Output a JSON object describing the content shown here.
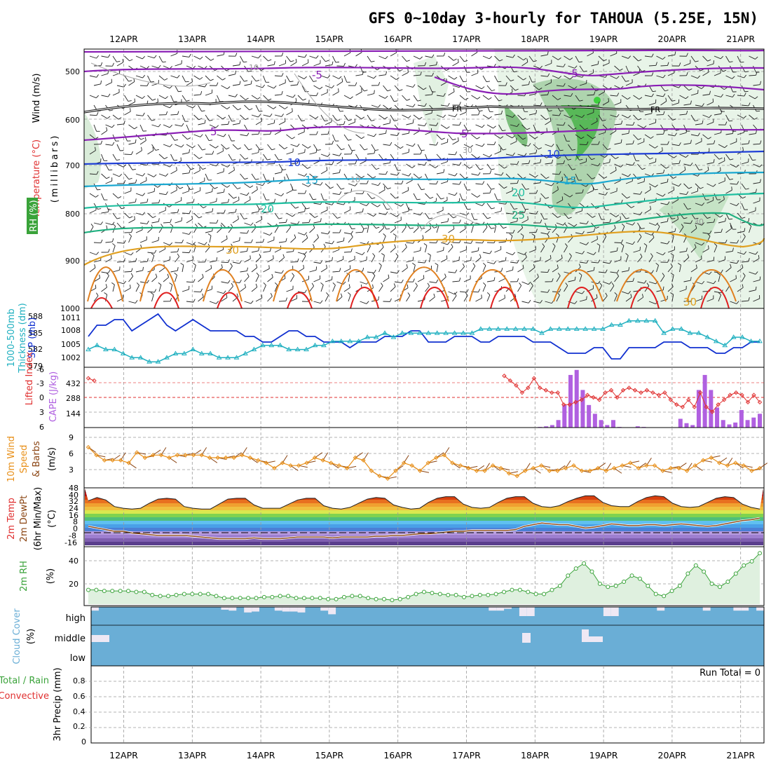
{
  "title": "GFS 0~10day 3-hourly for TAHOUA (5.25E, 15N)",
  "dates": [
    "12APR",
    "13APR",
    "14APR",
    "15APR",
    "16APR",
    "17APR",
    "18APR",
    "19APR",
    "20APR",
    "21APR"
  ],
  "colors": {
    "green": "#3aa33a",
    "red": "#e03030",
    "orange": "#e8901a",
    "purple": "#b060e0",
    "cyan": "#20b0c0",
    "blue": "#1030d0",
    "cloud": "#6aaed6",
    "brown": "#8b4513"
  },
  "panels": {
    "upper": {
      "label_wind": "Wind (m/s)",
      "label_temp": "Temperature (°C)",
      "label_rh": "RH (%)",
      "label_units": "(millibars)",
      "ticks": [
        "500",
        "600",
        "700",
        "800",
        "900",
        "1000"
      ],
      "contours": [
        "-5",
        "-5",
        "-5",
        "5",
        "5",
        "10",
        "10",
        "15",
        "15",
        "20",
        "20",
        "25",
        "30",
        "30",
        "30",
        "30",
        "10",
        "10",
        "30",
        "FR",
        "FR"
      ]
    },
    "thick": {
      "label_a": "1000-500mb",
      "label_b": "Thickness (dm)",
      "label_c": "SLP (mb)",
      "ticks_left": [
        "588",
        "585",
        "582",
        "579"
      ],
      "ticks_right": [
        "1011",
        "1008",
        "1005",
        "1002"
      ]
    },
    "cape": {
      "label_li": "Lifted Index",
      "label_cape": "CAPE (J/kg)",
      "ticks_li": [
        "-6",
        "-3",
        "0",
        "3",
        "6"
      ],
      "ticks_cape": [
        "432",
        "288",
        "144"
      ]
    },
    "wind": {
      "label_a": "10m Wind",
      "label_b": "Speed",
      "label_c": "& Barbs",
      "label_d": "(m/s)",
      "ticks": [
        "9",
        "6",
        "3"
      ]
    },
    "temp": {
      "label_a": "2m Temp",
      "label_b": "2m DewPt",
      "label_c": "(6hr Min/Max)",
      "label_d": "(°C)",
      "ticks": [
        "48",
        "40",
        "32",
        "24",
        "16",
        "8",
        "0",
        "-8",
        "-16"
      ]
    },
    "rh": {
      "label_a": "2m RH",
      "label_b": "(%)",
      "ticks": [
        "40",
        "20"
      ]
    },
    "cloud": {
      "label_a": "Cloud Cover",
      "label_b": "(%)",
      "levels": [
        "high",
        "middle",
        "low"
      ]
    },
    "precip": {
      "label_a": "Total / Rain",
      "label_b": "Convective",
      "label_c": "3hr Precip (mm)",
      "run_total": "Run Total = 0",
      "ticks": [
        "0.8",
        "0.6",
        "0.4",
        "0.2",
        "0"
      ]
    }
  },
  "chart_data": [
    {
      "type": "line",
      "name": "1000-500mb Thickness (dm)",
      "ylim": [
        579,
        588
      ],
      "values": [
        584,
        586,
        586,
        587,
        587,
        585,
        586,
        587,
        588,
        586,
        585,
        586,
        587,
        586,
        585,
        585,
        585,
        585,
        584,
        584,
        583,
        583,
        584,
        585,
        585,
        584,
        584,
        583,
        583,
        583,
        582,
        583,
        583,
        583,
        584,
        584,
        584,
        585,
        585,
        583,
        583,
        583,
        584,
        584,
        584,
        583,
        583,
        584,
        584,
        584,
        584,
        583,
        583,
        583,
        582,
        581,
        581,
        581,
        582,
        582,
        580,
        580,
        582,
        582,
        582,
        582,
        583,
        583,
        583,
        582,
        582,
        582,
        581,
        581,
        582,
        582,
        583,
        583
      ]
    },
    {
      "type": "line",
      "name": "SLP (mb)",
      "ylim": [
        1000,
        1013
      ],
      "values": [
        1004,
        1005,
        1004,
        1004,
        1003,
        1002,
        1002,
        1001,
        1001,
        1002,
        1003,
        1003,
        1004,
        1003,
        1003,
        1002,
        1002,
        1002,
        1003,
        1004,
        1005,
        1005,
        1005,
        1004,
        1004,
        1004,
        1005,
        1005,
        1006,
        1006,
        1006,
        1006,
        1007,
        1007,
        1008,
        1007,
        1008,
        1008,
        1008,
        1008,
        1008,
        1008,
        1008,
        1008,
        1008,
        1009,
        1009,
        1009,
        1009,
        1009,
        1009,
        1009,
        1008,
        1009,
        1009,
        1009,
        1009,
        1009,
        1009,
        1009,
        1010,
        1010,
        1011,
        1011,
        1011,
        1011,
        1008,
        1009,
        1009,
        1008,
        1008,
        1007,
        1006,
        1005,
        1007,
        1007,
        1006,
        1006
      ]
    },
    {
      "type": "line",
      "name": "Lifted Index",
      "ylim": [
        6,
        -6
      ],
      "values": [
        4.0,
        3.5,
        null,
        null,
        null,
        null,
        null,
        null,
        null,
        null,
        null,
        null,
        null,
        null,
        null,
        null,
        null,
        null,
        null,
        null,
        null,
        null,
        null,
        null,
        null,
        null,
        null,
        null,
        null,
        null,
        null,
        null,
        null,
        null,
        null,
        null,
        null,
        null,
        null,
        null,
        null,
        null,
        null,
        null,
        null,
        null,
        null,
        null,
        null,
        null,
        null,
        null,
        null,
        null,
        null,
        null,
        null,
        null,
        null,
        null,
        null,
        null,
        null,
        null,
        null,
        null,
        null,
        null,
        null,
        null,
        4.5,
        3.5,
        2.5,
        1.0,
        2.0,
        4.0,
        2.0,
        1.5,
        1.0,
        1.0,
        -1.5,
        -1.5,
        -1.0,
        -0.5,
        0.5,
        0.0,
        -0.5,
        1.0,
        1.5,
        0.0,
        1.5,
        2.0,
        1.5,
        1.0,
        1.5,
        1.0,
        0.5,
        1.0,
        -0.5,
        -1.5,
        -2.0,
        -0.5,
        -2.0,
        1.0,
        -2.0,
        -3.0,
        -1.5,
        -0.5,
        0.5,
        1.0,
        0.5,
        -1.0,
        0.5,
        -1.0
      ]
    },
    {
      "type": "bar",
      "name": "CAPE (J/kg)",
      "ylim": [
        0,
        470
      ],
      "values": [
        0,
        0,
        0,
        0,
        0,
        0,
        0,
        0,
        0,
        0,
        0,
        0,
        0,
        0,
        0,
        0,
        0,
        0,
        0,
        0,
        0,
        0,
        0,
        0,
        0,
        0,
        0,
        0,
        0,
        0,
        0,
        0,
        0,
        0,
        0,
        0,
        0,
        0,
        0,
        0,
        0,
        0,
        0,
        0,
        0,
        0,
        0,
        0,
        0,
        0,
        0,
        0,
        0,
        0,
        0,
        0,
        0,
        0,
        0,
        0,
        0,
        0,
        0,
        0,
        0,
        0,
        0,
        0,
        0,
        0,
        0,
        0,
        0,
        0,
        5,
        10,
        20,
        60,
        180,
        420,
        460,
        300,
        180,
        110,
        60,
        20,
        60,
        5,
        0,
        0,
        10,
        5,
        0,
        0,
        0,
        0,
        0,
        70,
        35,
        20,
        300,
        420,
        300,
        160,
        60,
        25,
        40,
        140,
        60,
        80,
        110
      ]
    },
    {
      "type": "line",
      "name": "10m Wind Speed (m/s)",
      "ylim": [
        0,
        11
      ],
      "values": [
        7.5,
        6.0,
        5.0,
        5.0,
        5.0,
        4.5,
        6.5,
        5.5,
        6.0,
        6.0,
        5.5,
        6.0,
        6.0,
        6.0,
        6.0,
        5.5,
        5.5,
        5.5,
        5.5,
        6.0,
        5.5,
        5.0,
        4.5,
        3.5,
        4.5,
        4.0,
        4.0,
        4.5,
        5.5,
        5.0,
        4.5,
        4.0,
        3.5,
        5.5,
        5.0,
        3.0,
        2.0,
        1.5,
        3.0,
        4.5,
        4.0,
        3.0,
        4.5,
        5.5,
        6.0,
        4.5,
        4.0,
        3.5,
        3.0,
        3.0,
        4.0,
        3.5,
        2.5,
        2.0,
        3.0,
        3.5,
        4.0,
        3.0,
        3.0,
        3.5,
        4.0,
        3.0,
        3.0,
        3.5,
        3.0,
        3.5,
        4.0,
        4.5,
        3.5,
        4.0,
        4.0,
        3.0,
        3.5,
        3.5,
        3.0,
        4.0,
        5.0,
        5.5,
        4.5,
        4.0,
        4.5,
        4.0,
        3.0,
        3.5
      ]
    },
    {
      "type": "area",
      "name": "2m Temp (°C)",
      "ylim": [
        -20,
        48
      ],
      "values": [
        34,
        38,
        35,
        27,
        25,
        24,
        25,
        31,
        36,
        37,
        36,
        27,
        25,
        24,
        24,
        30,
        36,
        37,
        37,
        29,
        25,
        25,
        25,
        30,
        35,
        37,
        37,
        28,
        25,
        24,
        26,
        31,
        36,
        38,
        37,
        29,
        26,
        24,
        25,
        32,
        37,
        39,
        39,
        30,
        26,
        25,
        26,
        32,
        37,
        39,
        39,
        31,
        27,
        26,
        28,
        33,
        37,
        40,
        40,
        32,
        28,
        27,
        27,
        33,
        38,
        40,
        39,
        31,
        27,
        26,
        27,
        32,
        37,
        39,
        38,
        30,
        26,
        24
      ]
    },
    {
      "type": "line",
      "name": "2m DewPt (°C)",
      "ylim": [
        -20,
        48
      ],
      "values": [
        3,
        1,
        -1,
        -3,
        -3,
        -5,
        -6,
        -7,
        -8,
        -8,
        -8,
        -8,
        -9,
        -10,
        -11,
        -12,
        -12,
        -12,
        -12,
        -11,
        -12,
        -12,
        -12,
        -11,
        -10,
        -10,
        -10,
        -10,
        -11,
        -10,
        -10,
        -10,
        -10,
        -9,
        -9,
        -8,
        -8,
        -7,
        -6,
        -6,
        -5,
        -4,
        -3,
        -3,
        -2,
        -2,
        -2,
        -2,
        -2,
        -1,
        3,
        5,
        7,
        6,
        5,
        5,
        3,
        1,
        2,
        4,
        6,
        5,
        4,
        4,
        5,
        5,
        4,
        5,
        6,
        5,
        4,
        3,
        4,
        6,
        8,
        10,
        11,
        13
      ]
    },
    {
      "type": "area",
      "name": "2m RH (%)",
      "ylim": [
        0,
        55
      ],
      "values": [
        14,
        14,
        13,
        13,
        13,
        13,
        12,
        12,
        9,
        8,
        8,
        9,
        10,
        10,
        10,
        10,
        8,
        6,
        6,
        6,
        6,
        6,
        7,
        7,
        8,
        8,
        6,
        6,
        6,
        6,
        5,
        5,
        7,
        8,
        8,
        6,
        5,
        5,
        4,
        5,
        7,
        10,
        12,
        11,
        10,
        9,
        9,
        7,
        8,
        9,
        9,
        10,
        12,
        14,
        14,
        12,
        10,
        10,
        14,
        18,
        28,
        35,
        40,
        32,
        20,
        17,
        18,
        22,
        28,
        25,
        18,
        10,
        8,
        13,
        18,
        30,
        38,
        32,
        20,
        17,
        22,
        30,
        38,
        42,
        50
      ]
    },
    {
      "type": "bar",
      "name": "Cloud Cover high (%)",
      "ylim": [
        0,
        100
      ],
      "values": [
        20,
        0,
        0,
        0,
        0,
        0,
        0,
        0,
        0,
        0,
        0,
        0,
        0,
        0,
        0,
        0,
        0,
        15,
        20,
        0,
        30,
        25,
        0,
        0,
        20,
        25,
        25,
        30,
        0,
        0,
        20,
        40,
        0,
        0,
        0,
        0,
        0,
        0,
        0,
        0,
        0,
        0,
        0,
        0,
        0,
        0,
        0,
        0,
        0,
        0,
        0,
        0,
        20,
        20,
        10,
        0,
        50,
        50,
        0,
        0,
        0,
        0,
        0,
        0,
        0,
        0,
        0,
        50,
        50,
        0,
        0,
        0,
        0,
        0,
        20,
        0,
        0,
        0,
        0,
        0,
        20,
        0,
        0,
        0,
        20,
        20,
        0,
        20
      ]
    },
    {
      "type": "bar",
      "name": "3hr Precip (mm)",
      "ylim": [
        0,
        1
      ],
      "values": []
    }
  ]
}
